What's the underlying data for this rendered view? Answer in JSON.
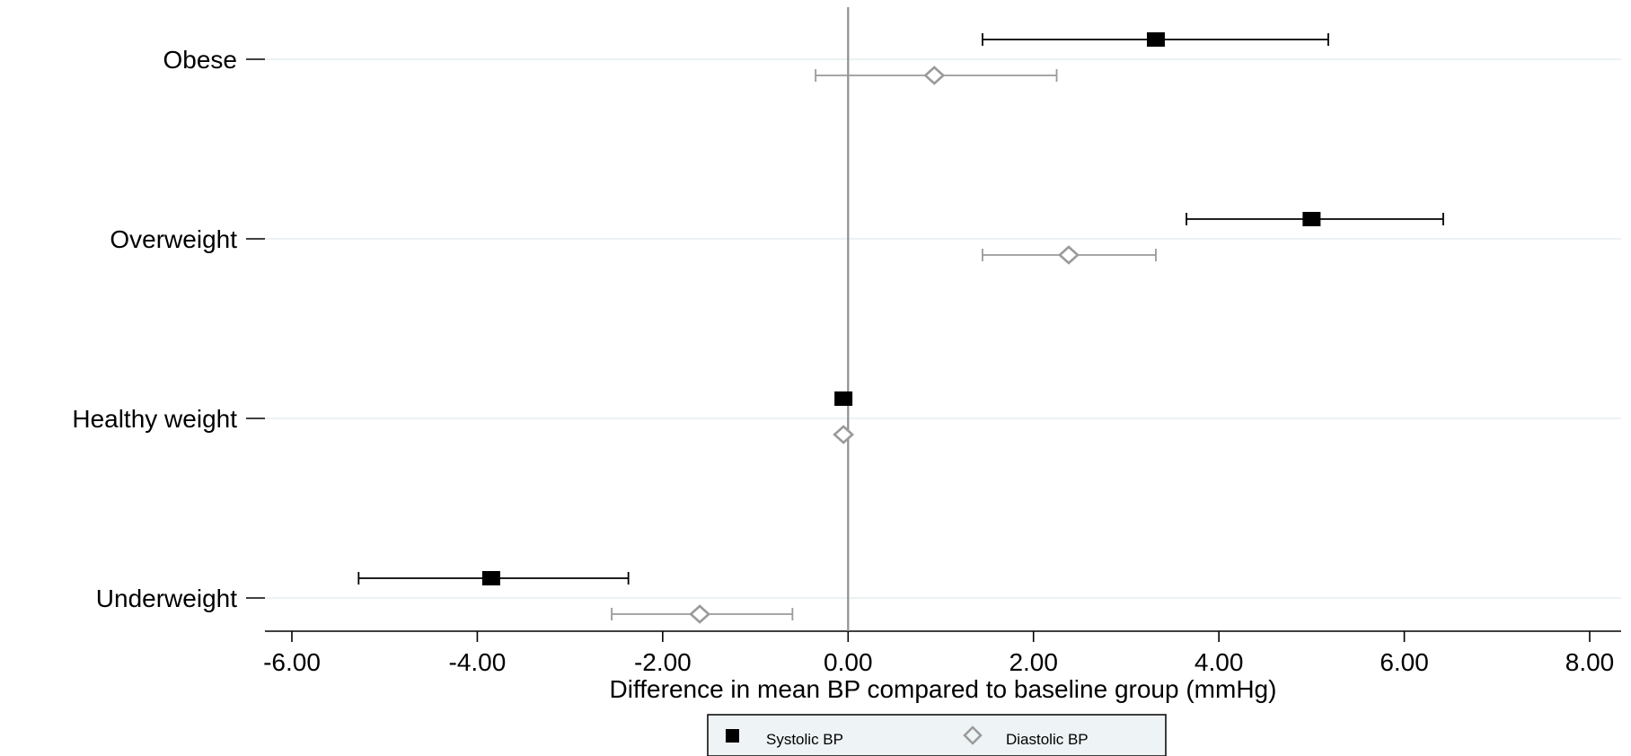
{
  "chart_data": {
    "type": "scatter",
    "subtype": "forest-plot",
    "categories": [
      "Obese",
      "Overweight",
      "Healthy weight",
      "Underweight"
    ],
    "xlabel": "Difference in mean BP compared to baseline group (mmHg)",
    "xlim": [
      -6.0,
      8.0
    ],
    "xticks": [
      "-6.00",
      "-4.00",
      "-2.00",
      "0.00",
      "2.00",
      "4.00",
      "6.00",
      "8.00"
    ],
    "xtick_values": [
      -6,
      -4,
      -2,
      0,
      2,
      4,
      6,
      8
    ],
    "reference_line": 0,
    "grid": "horizontal",
    "legend_position": "bottom-center",
    "series": [
      {
        "name": "Systolic BP",
        "marker": "filled-square",
        "color": "#000000",
        "estimates": [
          3.32,
          5.0,
          -0.05,
          -3.85
        ],
        "ci_low": [
          1.45,
          3.65,
          null,
          -5.28
        ],
        "ci_high": [
          5.18,
          6.42,
          null,
          -2.37
        ]
      },
      {
        "name": "Diastolic BP",
        "marker": "hollow-diamond",
        "color": "#9a9a9a",
        "estimates": [
          0.93,
          2.38,
          -0.05,
          -1.6
        ],
        "ci_low": [
          -0.35,
          1.45,
          null,
          -2.55
        ],
        "ci_high": [
          2.25,
          3.32,
          null,
          -0.6
        ]
      }
    ]
  }
}
